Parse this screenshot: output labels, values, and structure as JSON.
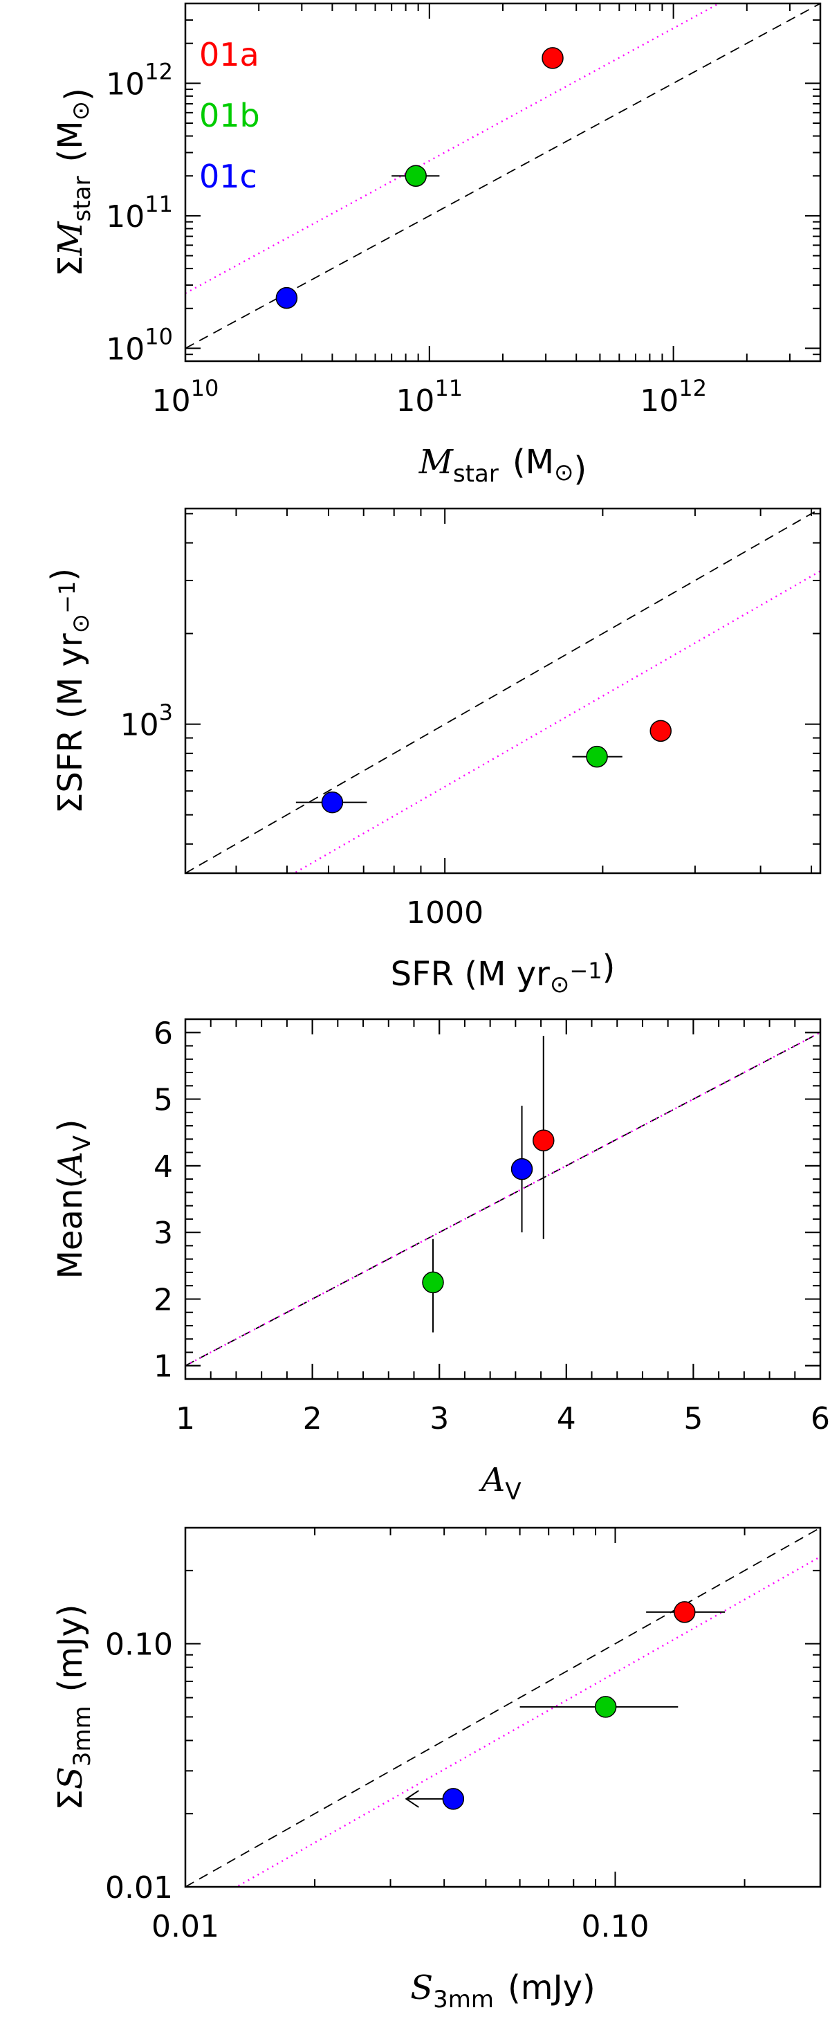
{
  "chart_data": [
    {
      "type": "scatter",
      "xscale": "log",
      "yscale": "log",
      "xlim": [
        10000000000.0,
        4000000000000.0
      ],
      "ylim": [
        8000000000.0,
        4000000000000.0
      ],
      "xticks": [
        10000000000.0,
        100000000000.0,
        1000000000000.0
      ],
      "xtick_labels": [
        {
          "base": "10",
          "exp": "10"
        },
        {
          "base": "10",
          "exp": "11"
        },
        {
          "base": "10",
          "exp": "12"
        }
      ],
      "yticks": [
        10000000000.0,
        100000000000.0,
        1000000000000.0
      ],
      "ytick_labels": [
        {
          "base": "10",
          "exp": "10"
        },
        {
          "base": "10",
          "exp": "11"
        },
        {
          "base": "10",
          "exp": "12"
        }
      ],
      "xlabel": {
        "pre": "",
        "sym": "M",
        "sub": "star",
        "post": " (M",
        "sun": "⊙",
        "end": ")"
      },
      "ylabel": {
        "pre": "Σ",
        "sym": "M",
        "sub": "star",
        "post": " (M",
        "sun": "⊙",
        "end": ")"
      },
      "legend": [
        {
          "label": "01a",
          "color": "#ff0000"
        },
        {
          "label": "01b",
          "color": "#00cc00"
        },
        {
          "label": "01c",
          "color": "#0000ff"
        }
      ],
      "points": [
        {
          "name": "01a",
          "x": 320000000000.0,
          "y": 1550000000000.0,
          "color": "#ff0000"
        },
        {
          "name": "01b",
          "x": 88000000000.0,
          "y": 200000000000.0,
          "xerr": [
            70000000000.0,
            110000000000.0
          ],
          "color": "#00cc00"
        },
        {
          "name": "01c",
          "x": 26000000000.0,
          "y": 24000000000.0,
          "color": "#0000ff"
        }
      ],
      "lines": [
        {
          "style": "dashed",
          "color": "#000000",
          "factor": 1
        },
        {
          "style": "dotted",
          "color": "#ff00ff",
          "factor": 2.6
        }
      ]
    },
    {
      "type": "scatter",
      "xscale": "log",
      "yscale": "log",
      "xlim": [
        320,
        5200
      ],
      "ylim": [
        320,
        5200
      ],
      "xticks": [
        1000
      ],
      "xtick_labels": [
        "1000"
      ],
      "yticks": [
        1000
      ],
      "ytick_labels": [
        {
          "base": "10",
          "exp": "3"
        }
      ],
      "xlabel": {
        "pre": "SFR (M",
        "sun": "⊙",
        "post": " yr",
        "sup": "−1",
        "end": ")"
      },
      "ylabel": {
        "pre": "ΣSFR (M",
        "sun": "⊙",
        "post": " yr",
        "sup": "−1",
        "end": ")"
      },
      "points": [
        {
          "name": "01a",
          "x": 2580,
          "y": 950,
          "color": "#ff0000"
        },
        {
          "name": "01b",
          "x": 1950,
          "y": 780,
          "xerr": [
            1750,
            2180
          ],
          "color": "#00cc00"
        },
        {
          "name": "01c",
          "x": 610,
          "y": 550,
          "xerr": [
            520,
            710
          ],
          "color": "#0000ff"
        }
      ],
      "lines": [
        {
          "style": "dashed",
          "color": "#000000",
          "factor": 1
        },
        {
          "style": "dotted",
          "color": "#ff00ff",
          "factor": 0.62
        }
      ]
    },
    {
      "type": "scatter",
      "xscale": "linear",
      "yscale": "linear",
      "xlim": [
        1,
        6
      ],
      "ylim": [
        0.8,
        6.2
      ],
      "xticks": [
        1,
        2,
        3,
        4,
        5,
        6
      ],
      "xtick_labels": [
        "1",
        "2",
        "3",
        "4",
        "5",
        "6"
      ],
      "yticks": [
        1,
        2,
        3,
        4,
        5,
        6
      ],
      "ytick_labels": [
        "1",
        "2",
        "3",
        "4",
        "5",
        "6"
      ],
      "xlabel": {
        "sym": "A",
        "sub": "V"
      },
      "ylabel": {
        "pre": "Mean(",
        "sym": "A",
        "sub": "V",
        "end": ")"
      },
      "points": [
        {
          "name": "01a",
          "x": 3.82,
          "y": 4.38,
          "yerr": [
            2.9,
            5.95
          ],
          "color": "#ff0000"
        },
        {
          "name": "01b",
          "x": 2.95,
          "y": 2.25,
          "yerr": [
            1.5,
            2.9
          ],
          "color": "#00cc00"
        },
        {
          "name": "01c",
          "x": 3.65,
          "y": 3.95,
          "yerr": [
            3.0,
            4.9
          ],
          "color": "#0000ff"
        }
      ],
      "lines": [
        {
          "style": "dashed",
          "color": "#000000",
          "factor": 1
        },
        {
          "style": "dotted",
          "color": "#ff00ff",
          "factor": 1
        }
      ]
    },
    {
      "type": "scatter",
      "xscale": "log",
      "yscale": "log",
      "xlim": [
        0.01,
        0.3
      ],
      "ylim": [
        0.01,
        0.3
      ],
      "xticks": [
        0.01,
        0.1
      ],
      "xtick_labels": [
        "0.01",
        "0.10"
      ],
      "yticks": [
        0.01,
        0.1
      ],
      "ytick_labels": [
        "0.01",
        "0.10"
      ],
      "xlabel": {
        "sym": "S",
        "sub": "3mm",
        "post": " (mJy)"
      },
      "ylabel": {
        "pre": "Σ",
        "sym": "S",
        "sub": "3mm",
        "post": " (mJy)"
      },
      "points": [
        {
          "name": "01a",
          "x": 0.145,
          "y": 0.135,
          "xerr": [
            0.118,
            0.18
          ],
          "color": "#ff0000"
        },
        {
          "name": "01b",
          "x": 0.095,
          "y": 0.055,
          "xerr": [
            0.06,
            0.14
          ],
          "color": "#00cc00"
        },
        {
          "name": "01c",
          "x": 0.042,
          "y": 0.023,
          "upper_limit_arrow": true,
          "color": "#0000ff"
        }
      ],
      "lines": [
        {
          "style": "dashed",
          "color": "#000000",
          "factor": 1
        },
        {
          "style": "dotted",
          "color": "#ff00ff",
          "factor": 0.76
        }
      ]
    }
  ]
}
